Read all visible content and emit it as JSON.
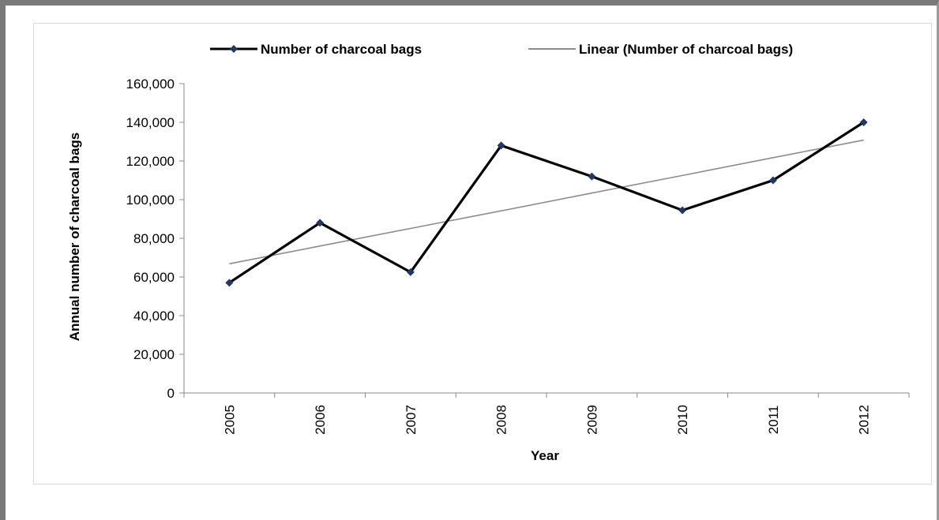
{
  "chart_data": {
    "type": "line",
    "title": "",
    "xlabel": "Year",
    "ylabel": "Annual number of charcoal bags",
    "x": [
      "2005",
      "2006",
      "2007",
      "2008",
      "2009",
      "2010",
      "2011",
      "2012"
    ],
    "ylim": [
      0,
      160000
    ],
    "yticks": [
      0,
      20000,
      40000,
      60000,
      80000,
      100000,
      120000,
      140000,
      160000
    ],
    "ytick_labels": [
      "0",
      "20,000",
      "40,000",
      "60,000",
      "80,000",
      "100,000",
      "120,000",
      "140,000",
      "160,000"
    ],
    "grid": false,
    "legend_position": "top",
    "series": [
      {
        "name": "Number of charcoal bags",
        "values": [
          57000,
          88000,
          62500,
          128000,
          112000,
          94500,
          110000,
          140000
        ],
        "color": "#000000",
        "marker_color": "#1f3864",
        "marker": "diamond"
      },
      {
        "name": "Linear (Number of charcoal bags)",
        "kind": "trendline",
        "values": [
          66800,
          76000,
          85100,
          94200,
          103400,
          112500,
          121700,
          130800
        ],
        "color": "#8c8c8c"
      }
    ]
  }
}
